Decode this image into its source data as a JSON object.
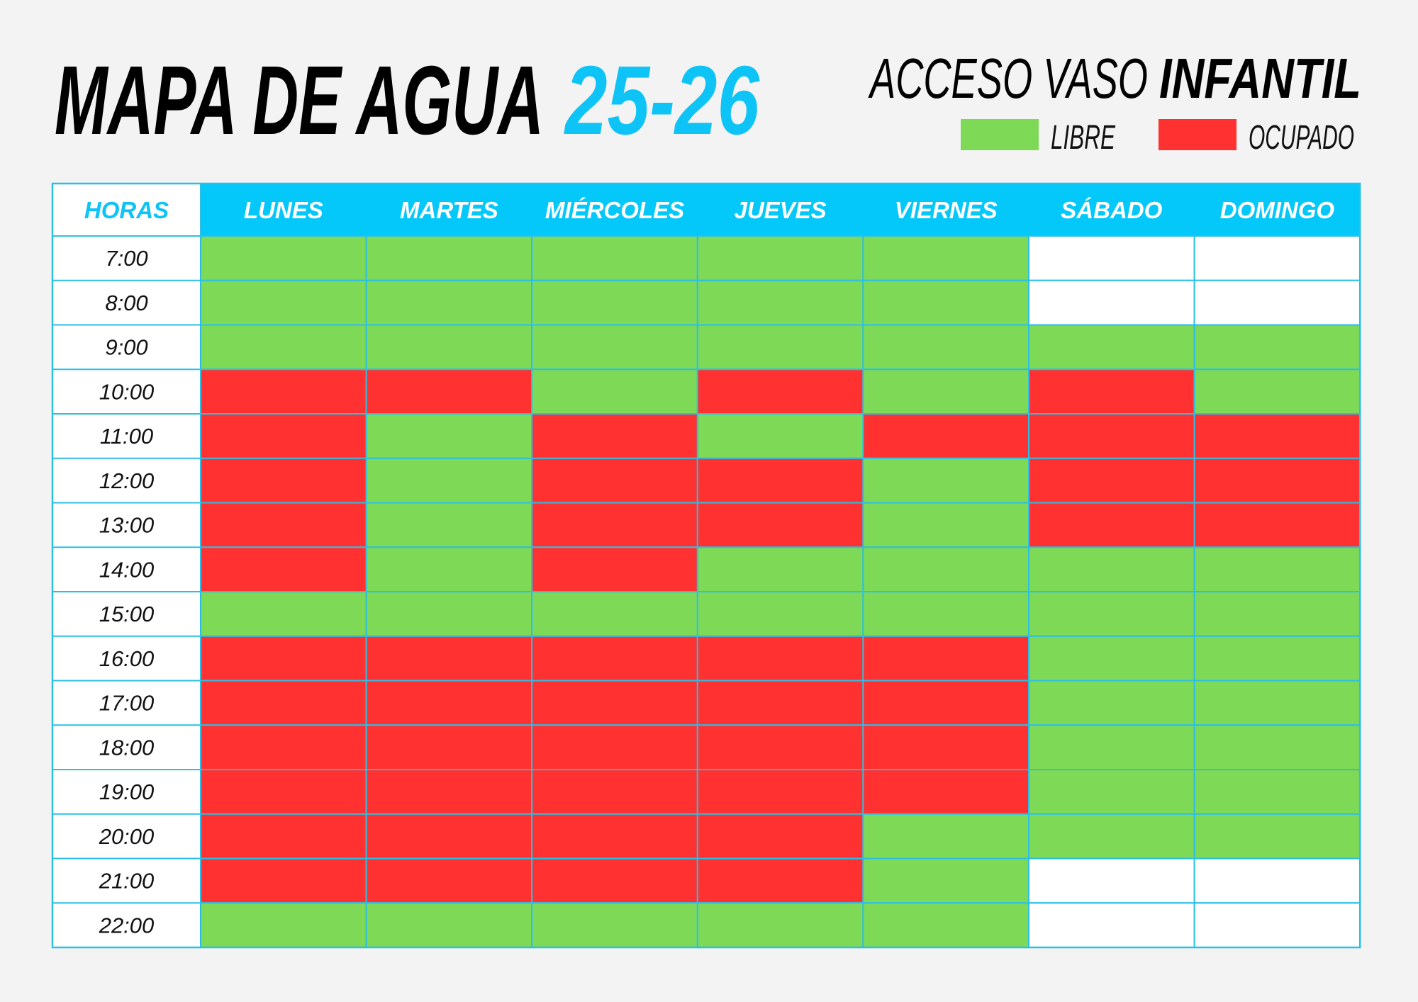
{
  "header": {
    "title": "MAPA DE AGUA",
    "title_accent": "25-26",
    "subtitle_light": "ACCESO VASO",
    "subtitle_bold": "INFANTIL"
  },
  "legend": [
    {
      "label": "LIBRE",
      "color": "#7ed957"
    },
    {
      "label": "OCUPADO",
      "color": "#ff3131"
    }
  ],
  "table": {
    "header_label": "HORAS",
    "days": [
      "LUNES",
      "MARTES",
      "MIÉRCOLES",
      "JUEVES",
      "VIERNES",
      "SÁBADO",
      "DOMINGO"
    ],
    "rows": [
      {
        "hour": "7:00",
        "cells": [
          0,
          0,
          0,
          0,
          0,
          null,
          null
        ]
      },
      {
        "hour": "8:00",
        "cells": [
          0,
          0,
          0,
          0,
          0,
          null,
          null
        ]
      },
      {
        "hour": "9:00",
        "cells": [
          0,
          0,
          0,
          0,
          0,
          0,
          0
        ]
      },
      {
        "hour": "10:00",
        "cells": [
          1,
          1,
          0,
          1,
          0,
          1,
          0
        ]
      },
      {
        "hour": "11:00",
        "cells": [
          1,
          0,
          1,
          0,
          1,
          1,
          1
        ]
      },
      {
        "hour": "12:00",
        "cells": [
          1,
          0,
          1,
          1,
          0,
          1,
          1
        ]
      },
      {
        "hour": "13:00",
        "cells": [
          1,
          0,
          1,
          1,
          0,
          1,
          1
        ]
      },
      {
        "hour": "14:00",
        "cells": [
          1,
          0,
          1,
          0,
          0,
          0,
          0
        ]
      },
      {
        "hour": "15:00",
        "cells": [
          0,
          0,
          0,
          0,
          0,
          0,
          0
        ]
      },
      {
        "hour": "16:00",
        "cells": [
          1,
          1,
          1,
          1,
          1,
          0,
          0
        ]
      },
      {
        "hour": "17:00",
        "cells": [
          1,
          1,
          1,
          1,
          1,
          0,
          0
        ]
      },
      {
        "hour": "18:00",
        "cells": [
          1,
          1,
          1,
          1,
          1,
          0,
          0
        ]
      },
      {
        "hour": "19:00",
        "cells": [
          1,
          1,
          1,
          1,
          1,
          0,
          0
        ]
      },
      {
        "hour": "20:00",
        "cells": [
          1,
          1,
          1,
          1,
          0,
          0,
          0
        ]
      },
      {
        "hour": "21:00",
        "cells": [
          1,
          1,
          1,
          1,
          0,
          null,
          null
        ]
      },
      {
        "hour": "22:00",
        "cells": [
          0,
          0,
          0,
          0,
          0,
          null,
          null
        ]
      }
    ]
  }
}
